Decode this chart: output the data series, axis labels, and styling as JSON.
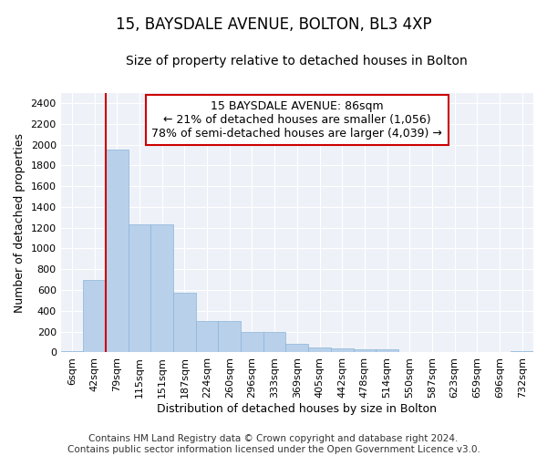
{
  "title": "15, BAYSDALE AVENUE, BOLTON, BL3 4XP",
  "subtitle": "Size of property relative to detached houses in Bolton",
  "xlabel": "Distribution of detached houses by size in Bolton",
  "ylabel": "Number of detached properties",
  "bar_color": "#b8d0ea",
  "bar_edge_color": "#8ab4d8",
  "background_color": "#eef2f8",
  "fig_background_color": "#ffffff",
  "grid_color": "#ffffff",
  "categories": [
    "6sqm",
    "42sqm",
    "79sqm",
    "115sqm",
    "151sqm",
    "187sqm",
    "224sqm",
    "260sqm",
    "296sqm",
    "333sqm",
    "369sqm",
    "405sqm",
    "442sqm",
    "478sqm",
    "514sqm",
    "550sqm",
    "587sqm",
    "623sqm",
    "659sqm",
    "696sqm",
    "732sqm"
  ],
  "values": [
    15,
    700,
    1950,
    1230,
    1230,
    575,
    305,
    305,
    200,
    200,
    80,
    45,
    38,
    32,
    32,
    5,
    5,
    2,
    5,
    2,
    15
  ],
  "red_line_x": 2,
  "annotation_text": "15 BAYSDALE AVENUE: 86sqm\n← 21% of detached houses are smaller (1,056)\n78% of semi-detached houses are larger (4,039) →",
  "annotation_box_color": "#ffffff",
  "annotation_box_edge_color": "#cc0000",
  "red_line_color": "#cc0000",
  "ylim": [
    0,
    2500
  ],
  "yticks": [
    0,
    200,
    400,
    600,
    800,
    1000,
    1200,
    1400,
    1600,
    1800,
    2000,
    2200,
    2400
  ],
  "footer_text": "Contains HM Land Registry data © Crown copyright and database right 2024.\nContains public sector information licensed under the Open Government Licence v3.0.",
  "title_fontsize": 12,
  "subtitle_fontsize": 10,
  "axis_label_fontsize": 9,
  "tick_fontsize": 8,
  "annotation_fontsize": 9,
  "footer_fontsize": 7.5
}
